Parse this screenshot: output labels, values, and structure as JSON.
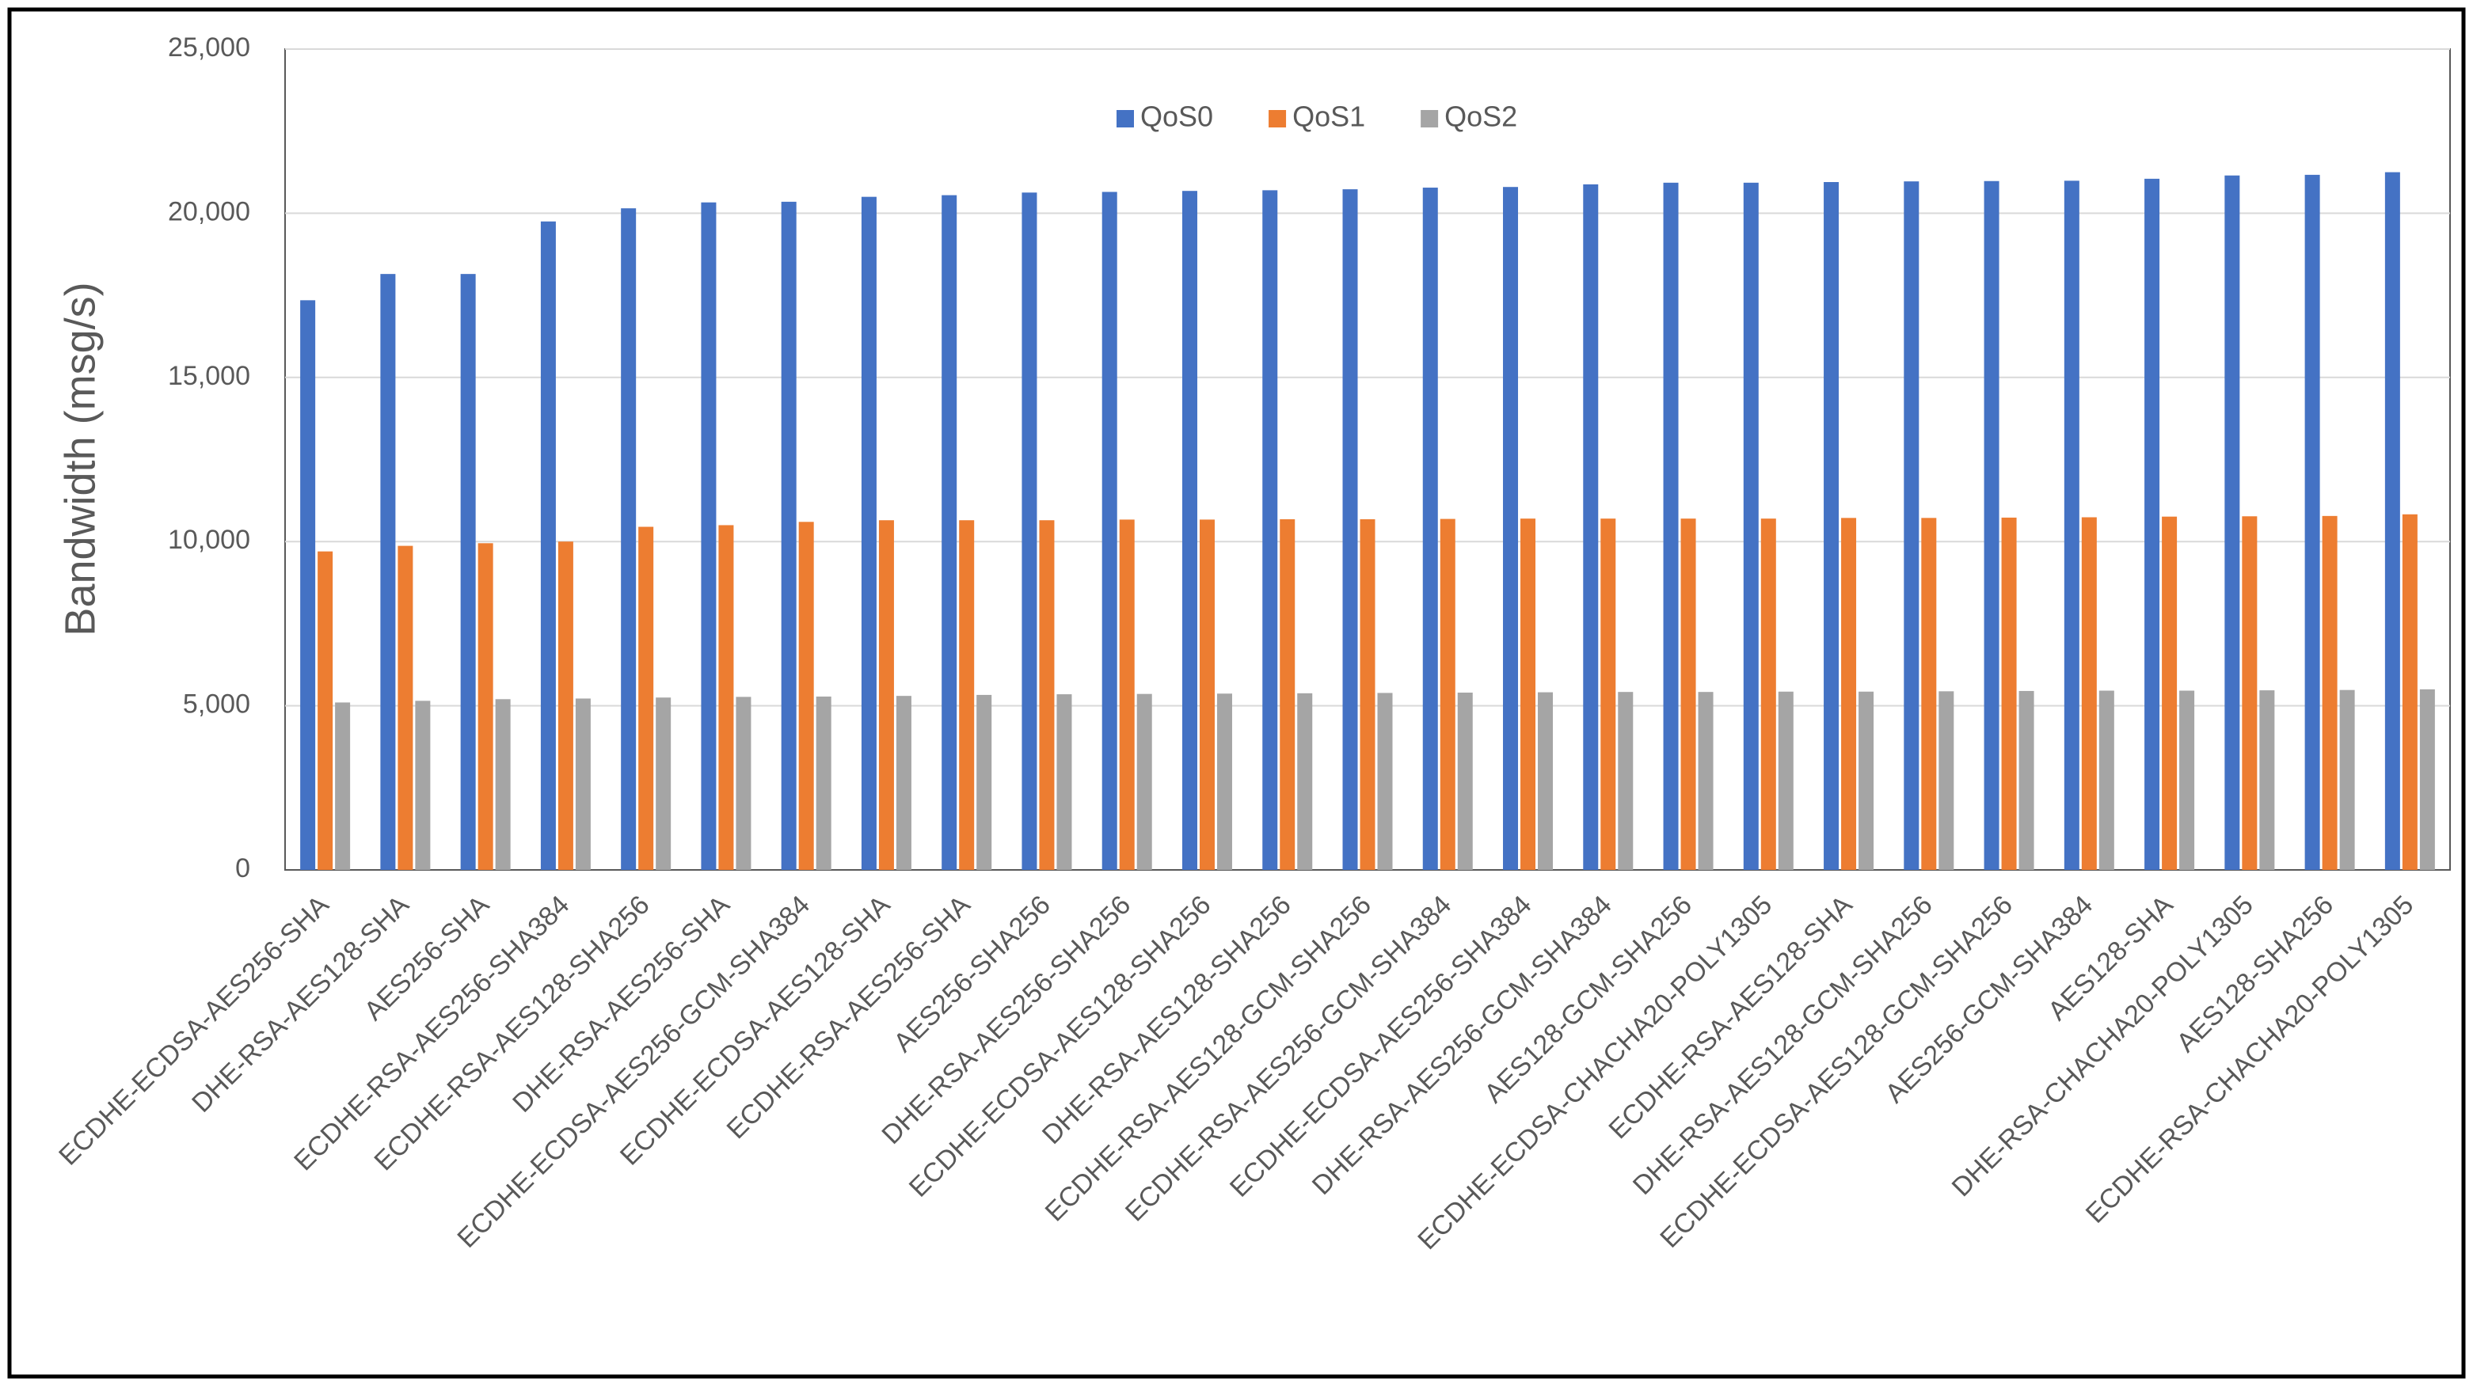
{
  "chart_data": {
    "type": "bar",
    "y_label": "Bandwidth (msg/s)",
    "categories": [
      "ECDHE-ECDSA-AES256-SHA",
      "DHE-RSA-AES128-SHA",
      "AES256-SHA",
      "ECDHE-RSA-AES256-SHA384",
      "ECDHE-RSA-AES128-SHA256",
      "DHE-RSA-AES256-SHA",
      "ECDHE-ECDSA-AES256-GCM-SHA384",
      "ECDHE-ECDSA-AES128-SHA",
      "ECDHE-RSA-AES256-SHA",
      "AES256-SHA256",
      "DHE-RSA-AES256-SHA256",
      "ECDHE-ECDSA-AES128-SHA256",
      "DHE-RSA-AES128-SHA256",
      "ECDHE-RSA-AES128-GCM-SHA256",
      "ECDHE-RSA-AES256-GCM-SHA384",
      "ECDHE-ECDSA-AES256-SHA384",
      "DHE-RSA-AES256-GCM-SHA384",
      "AES128-GCM-SHA256",
      "ECDHE-ECDSA-CHACHA20-POLY1305",
      "ECDHE-RSA-AES128-SHA",
      "DHE-RSA-AES128-GCM-SHA256",
      "ECDHE-ECDSA-AES128-GCM-SHA256",
      "AES256-GCM-SHA384",
      "AES128-SHA",
      "DHE-RSA-CHACHA20-POLY1305",
      "AES128-SHA256",
      "ECDHE-RSA-CHACHA20-POLY1305"
    ],
    "series": [
      {
        "name": "QoS0",
        "color": "#4472c4",
        "values": [
          17350,
          18150,
          18150,
          19750,
          20150,
          20330,
          20350,
          20500,
          20550,
          20630,
          20650,
          20680,
          20700,
          20730,
          20780,
          20800,
          20880,
          20930,
          20930,
          20950,
          20970,
          20980,
          20990,
          21050,
          21150,
          21170,
          21250
        ]
      },
      {
        "name": "QoS1",
        "color": "#ed7d31",
        "values": [
          9700,
          9870,
          9950,
          10000,
          10450,
          10500,
          10600,
          10650,
          10650,
          10650,
          10670,
          10670,
          10680,
          10680,
          10690,
          10700,
          10700,
          10700,
          10700,
          10720,
          10720,
          10730,
          10740,
          10760,
          10770,
          10780,
          10830
        ]
      },
      {
        "name": "QoS2",
        "color": "#a5a5a5",
        "values": [
          5100,
          5150,
          5200,
          5220,
          5250,
          5270,
          5280,
          5300,
          5330,
          5350,
          5360,
          5370,
          5380,
          5390,
          5400,
          5410,
          5420,
          5420,
          5430,
          5430,
          5440,
          5450,
          5460,
          5460,
          5470,
          5480,
          5500
        ]
      }
    ],
    "ylim": [
      0,
      25000
    ],
    "yticks": [
      0,
      {
        "value": 5000,
        "label": "5,000"
      },
      {
        "value": 10000,
        "label": "10,000"
      },
      {
        "value": 15000,
        "label": "15,000"
      },
      {
        "value": 20000,
        "label": "20,000"
      },
      {
        "value": 25000,
        "label": "25,000"
      }
    ],
    "grid": true,
    "legend": "top"
  }
}
